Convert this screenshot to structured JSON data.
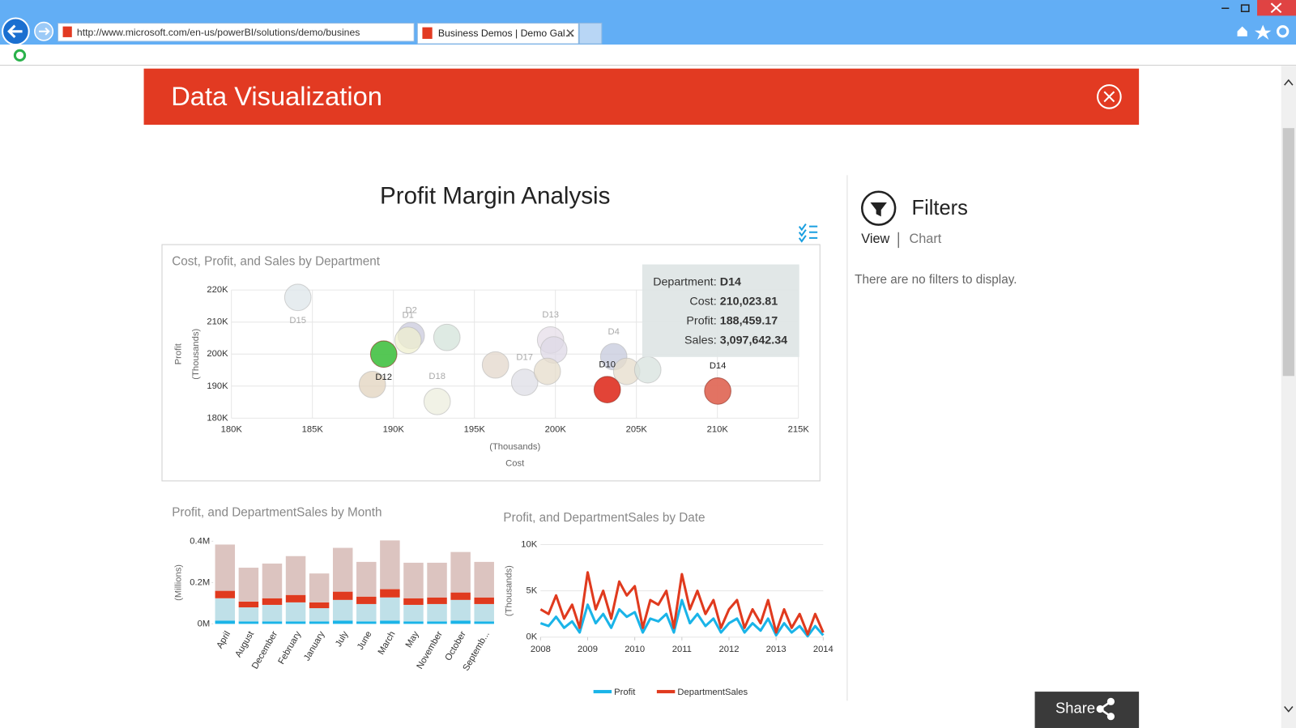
{
  "browser": {
    "url": "http://www.microsoft.com/en-us/powerBI/solutions/demo/busines",
    "tab_title": "Business Demos | Demo Gal..."
  },
  "header": {
    "title": "Data Visualization"
  },
  "report": {
    "title": "Profit Margin Analysis"
  },
  "filters": {
    "title": "Filters",
    "tabs": [
      "View",
      "Chart"
    ],
    "message": "There are no filters to display."
  },
  "share": {
    "label": "Share"
  },
  "chart_data": [
    {
      "type": "scatter",
      "title": "Cost, Profit, and Sales by Department",
      "x_label": "Cost",
      "x_unit": "(Thousands)",
      "y_label": "Profit",
      "y_unit": "(Thousands)",
      "categories": [
        "D15",
        "D2",
        "D1",
        "D12",
        null,
        null,
        "D18",
        null,
        "D17",
        "D13",
        null,
        null,
        "D4",
        "D10",
        null,
        null,
        "D14"
      ],
      "x": [
        184.1,
        191.1,
        190.9,
        189.4,
        193.3,
        188.7,
        192.7,
        196.3,
        198.1,
        199.7,
        199.9,
        199.5,
        203.6,
        203.2,
        204.4,
        205.7,
        210.02
      ],
      "values": [
        217.7,
        205.8,
        204.3,
        200.0,
        205.2,
        190.5,
        185.2,
        196.6,
        191.2,
        204.4,
        201.3,
        194.6,
        199.2,
        188.9,
        194.6,
        195.1,
        188.46
      ],
      "colors": [
        "#dde6ea",
        "#c9c9dc",
        "#efefcf",
        "#4cc44c",
        "#d3e3d9",
        "#e2d3be",
        "#eceedd",
        "#e3d7cb",
        "#dddde6",
        "#e5dde8",
        "#ddd8e6",
        "#e6dccb",
        "#c6c9dc",
        "#e03a2c",
        "#e6dccb",
        "#d7e2de",
        "#e06b5b"
      ],
      "highlighted": [
        false,
        false,
        false,
        true,
        false,
        false,
        false,
        false,
        false,
        false,
        false,
        false,
        false,
        true,
        false,
        false,
        true
      ],
      "xlim": [
        180,
        215
      ],
      "xticks": [
        {
          "value": 180,
          "label": "180K"
        },
        {
          "value": 185,
          "label": "185K"
        },
        {
          "value": 190,
          "label": "190K"
        },
        {
          "value": 195,
          "label": "195K"
        },
        {
          "value": 200,
          "label": "200K"
        },
        {
          "value": 205,
          "label": "205K"
        },
        {
          "value": 210,
          "label": "210K"
        },
        {
          "value": 215,
          "label": "215K"
        }
      ],
      "ylim": [
        180,
        220
      ],
      "yticks": [
        {
          "value": 180,
          "label": "180K"
        },
        {
          "value": 190,
          "label": "190K"
        },
        {
          "value": 200,
          "label": "200K"
        },
        {
          "value": 210,
          "label": "210K"
        },
        {
          "value": 220,
          "label": "220K"
        }
      ],
      "grid": true,
      "tooltip": {
        "rows": [
          {
            "label": "Department:",
            "value": "D14"
          },
          {
            "label": "Cost:",
            "value": "210,023.81"
          },
          {
            "label": "Profit:",
            "value": "188,459.17"
          },
          {
            "label": "Sales:",
            "value": "3,097,642.34"
          }
        ]
      }
    },
    {
      "type": "bar",
      "stacked": true,
      "title": "Profit, and DepartmentSales by Month",
      "y_unit": "(Millions)",
      "categories": [
        "April",
        "August",
        "December",
        "February",
        "January",
        "July",
        "June",
        "March",
        "May",
        "November",
        "October",
        "Septemb..."
      ],
      "series": [
        {
          "color": "#1ab4e8",
          "values": [
            0.016,
            0.012,
            0.012,
            0.012,
            0.012,
            0.016,
            0.012,
            0.016,
            0.012,
            0.012,
            0.016,
            0.012
          ]
        },
        {
          "color": "#bfe0e8",
          "values": [
            0.108,
            0.068,
            0.08,
            0.092,
            0.064,
            0.1,
            0.084,
            0.112,
            0.08,
            0.084,
            0.1,
            0.084
          ]
        },
        {
          "color": "#e03a1e",
          "values": [
            0.036,
            0.028,
            0.032,
            0.036,
            0.028,
            0.04,
            0.036,
            0.04,
            0.032,
            0.032,
            0.036,
            0.032
          ]
        },
        {
          "color": "#dcc4c0",
          "values": [
            0.224,
            0.164,
            0.168,
            0.188,
            0.14,
            0.212,
            0.168,
            0.236,
            0.172,
            0.168,
            0.196,
            0.172
          ]
        }
      ],
      "ylim": [
        0,
        0.4
      ],
      "yticks": [
        {
          "value": 0,
          "label": "0M"
        },
        {
          "value": 0.2,
          "label": "0.2M"
        },
        {
          "value": 0.4,
          "label": "0.4M"
        }
      ]
    },
    {
      "type": "line",
      "title": "Profit, and DepartmentSales by Date",
      "y_unit": "(Thousands)",
      "x": [
        2008,
        2008.17,
        2008.33,
        2008.5,
        2008.67,
        2008.83,
        2009,
        2009.17,
        2009.33,
        2009.5,
        2009.67,
        2009.83,
        2010,
        2010.17,
        2010.33,
        2010.5,
        2010.67,
        2010.83,
        2011,
        2011.17,
        2011.33,
        2011.5,
        2011.67,
        2011.83,
        2012,
        2012.17,
        2012.33,
        2012.5,
        2012.67,
        2012.83,
        2013,
        2013.17,
        2013.33,
        2013.5,
        2013.67,
        2013.83,
        2014
      ],
      "series": [
        {
          "name": "Profit",
          "color": "#1ab4e8",
          "values": [
            1.5,
            1.2,
            2.2,
            1.0,
            1.7,
            0.5,
            3.5,
            1.5,
            2.5,
            1.0,
            3.0,
            2.2,
            2.7,
            0.5,
            2.0,
            1.7,
            2.5,
            0.5,
            4.0,
            1.5,
            2.5,
            1.2,
            2.0,
            0.5,
            1.5,
            2.0,
            0.5,
            1.5,
            0.7,
            2.0,
            0.2,
            1.5,
            0.5,
            1.2,
            0.1,
            1.2,
            0.2
          ]
        },
        {
          "name": "DepartmentSales",
          "color": "#e03a1e",
          "values": [
            3.0,
            2.5,
            4.5,
            2.0,
            3.5,
            1.0,
            7.0,
            3.0,
            5.0,
            2.0,
            6.0,
            4.5,
            5.5,
            1.0,
            4.0,
            3.5,
            5.0,
            1.0,
            6.8,
            3.0,
            5.0,
            2.5,
            4.0,
            1.0,
            3.0,
            4.0,
            1.0,
            3.0,
            1.5,
            4.0,
            0.5,
            3.0,
            1.0,
            2.5,
            0.3,
            2.5,
            0.5
          ]
        }
      ],
      "xlim": [
        2008,
        2014
      ],
      "xticks": [
        2008,
        2009,
        2010,
        2011,
        2012,
        2013,
        2014
      ],
      "ylim": [
        0,
        10
      ],
      "yticks": [
        {
          "value": 0,
          "label": "0K"
        },
        {
          "value": 5,
          "label": "5K"
        },
        {
          "value": 10,
          "label": "10K"
        }
      ],
      "grid": true,
      "legend": "bottom"
    }
  ]
}
